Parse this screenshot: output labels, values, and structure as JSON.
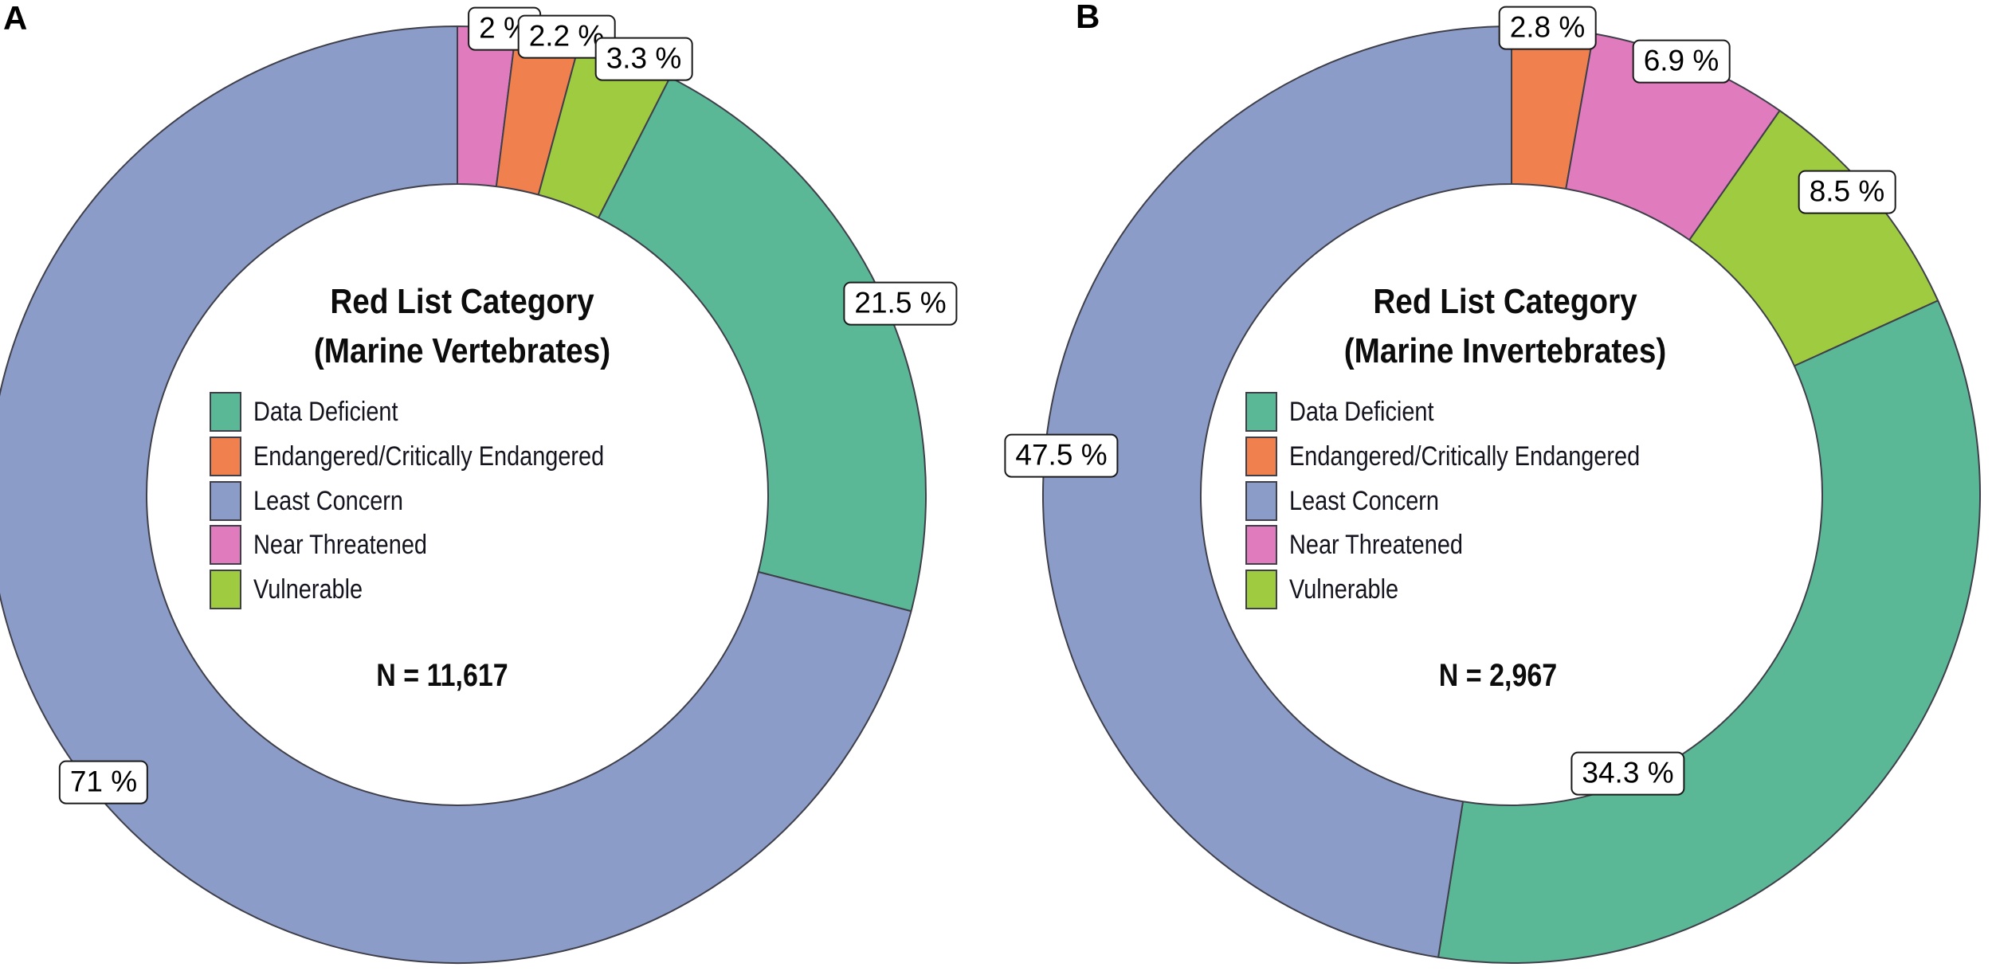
{
  "colors": {
    "data_deficient": "#5ab897",
    "endangered": "#f0814f",
    "least_concern": "#8c9cc8",
    "near_threatened": "#e07cbe",
    "vulnerable": "#9ecb40",
    "slice_outline": "#3f3f4a",
    "callout_border": "#1a1a1a"
  },
  "legend": {
    "items": [
      {
        "label": "Data Deficient",
        "color_key": "data_deficient"
      },
      {
        "label": "Endangered/Critically Endangered",
        "color_key": "endangered"
      },
      {
        "label": "Least Concern",
        "color_key": "least_concern"
      },
      {
        "label": "Near Threatened",
        "color_key": "near_threatened"
      },
      {
        "label": "Vulnerable",
        "color_key": "vulnerable"
      }
    ]
  },
  "chart_data": [
    {
      "type": "pie",
      "subtype": "donut",
      "panel_tag": "A",
      "title": "Red List Category (Marine Vertebrates)",
      "title_lines": [
        "Red List Category",
        "(Marine Vertebrates)"
      ],
      "sample_size_label": "N = 11,617",
      "sample_size": 11617,
      "unit": "%",
      "start_angle_deg": 0,
      "direction": "clockwise",
      "legend_position": "center",
      "slices": [
        {
          "category": "Near Threatened",
          "value": 2.0,
          "display": "2 %",
          "color_key": "near_threatened"
        },
        {
          "category": "Endangered/Critically Endangered",
          "value": 2.2,
          "display": "2.2 %",
          "color_key": "endangered"
        },
        {
          "category": "Vulnerable",
          "value": 3.3,
          "display": "3.3 %",
          "color_key": "vulnerable"
        },
        {
          "category": "Data Deficient",
          "value": 21.5,
          "display": "21.5 %",
          "color_key": "data_deficient"
        },
        {
          "category": "Least Concern",
          "value": 71.0,
          "display": "71 %",
          "color_key": "least_concern"
        }
      ]
    },
    {
      "type": "pie",
      "subtype": "donut",
      "panel_tag": "B",
      "title": "Red List Category (Marine Invertebrates)",
      "title_lines": [
        "Red List Category",
        "(Marine Invertebrates)"
      ],
      "sample_size_label": "N = 2,967",
      "sample_size": 2967,
      "unit": "%",
      "start_angle_deg": 0,
      "direction": "clockwise",
      "legend_position": "center",
      "slices": [
        {
          "category": "Endangered/Critically Endangered",
          "value": 2.8,
          "display": "2.8 %",
          "color_key": "endangered"
        },
        {
          "category": "Near Threatened",
          "value": 6.9,
          "display": "6.9 %",
          "color_key": "near_threatened"
        },
        {
          "category": "Vulnerable",
          "value": 8.5,
          "display": "8.5 %",
          "color_key": "vulnerable"
        },
        {
          "category": "Data Deficient",
          "value": 34.3,
          "display": "34.3 %",
          "color_key": "data_deficient"
        },
        {
          "category": "Least Concern",
          "value": 47.5,
          "display": "47.5 %",
          "color_key": "least_concern"
        }
      ]
    }
  ]
}
